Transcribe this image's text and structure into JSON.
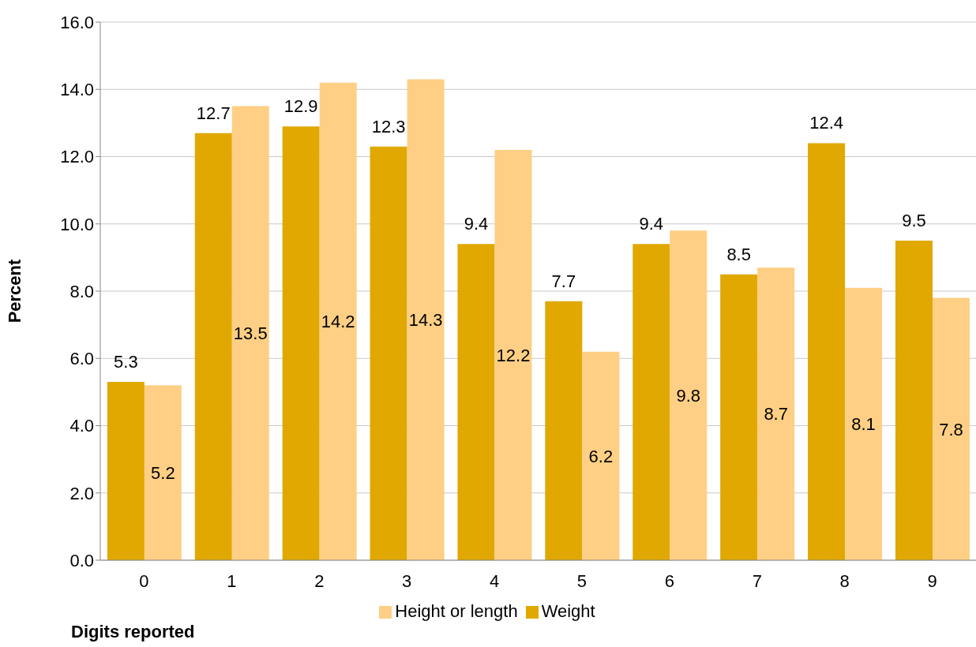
{
  "chart_data": {
    "type": "bar",
    "xlabel": "Digits reported",
    "ylabel": "Percent",
    "categories": [
      "0",
      "1",
      "2",
      "3",
      "4",
      "5",
      "6",
      "7",
      "8",
      "9"
    ],
    "series": [
      {
        "name": "Weight",
        "color": "#e0a800",
        "values": [
          5.3,
          12.7,
          12.9,
          12.3,
          9.4,
          7.7,
          9.4,
          8.5,
          12.4,
          9.5
        ]
      },
      {
        "name": "Height or length",
        "color": "#fecf84",
        "values": [
          5.2,
          13.5,
          14.2,
          14.3,
          12.2,
          6.2,
          9.8,
          8.7,
          8.1,
          7.8
        ]
      }
    ],
    "ylim": [
      0,
      16
    ],
    "yticks": [
      {
        "value": 0,
        "label": "0.0"
      },
      {
        "value": 2,
        "label": "2.0"
      },
      {
        "value": 4,
        "label": "4.0"
      },
      {
        "value": 6,
        "label": "6.0"
      },
      {
        "value": 8,
        "label": "8.0"
      },
      {
        "value": 10,
        "label": "10.0"
      },
      {
        "value": 12,
        "label": "12.0"
      },
      {
        "value": 14,
        "label": "14.0"
      },
      {
        "value": 16,
        "label": "16.0"
      }
    ],
    "grid": "y",
    "legend": "bottom",
    "data_labels": true
  }
}
